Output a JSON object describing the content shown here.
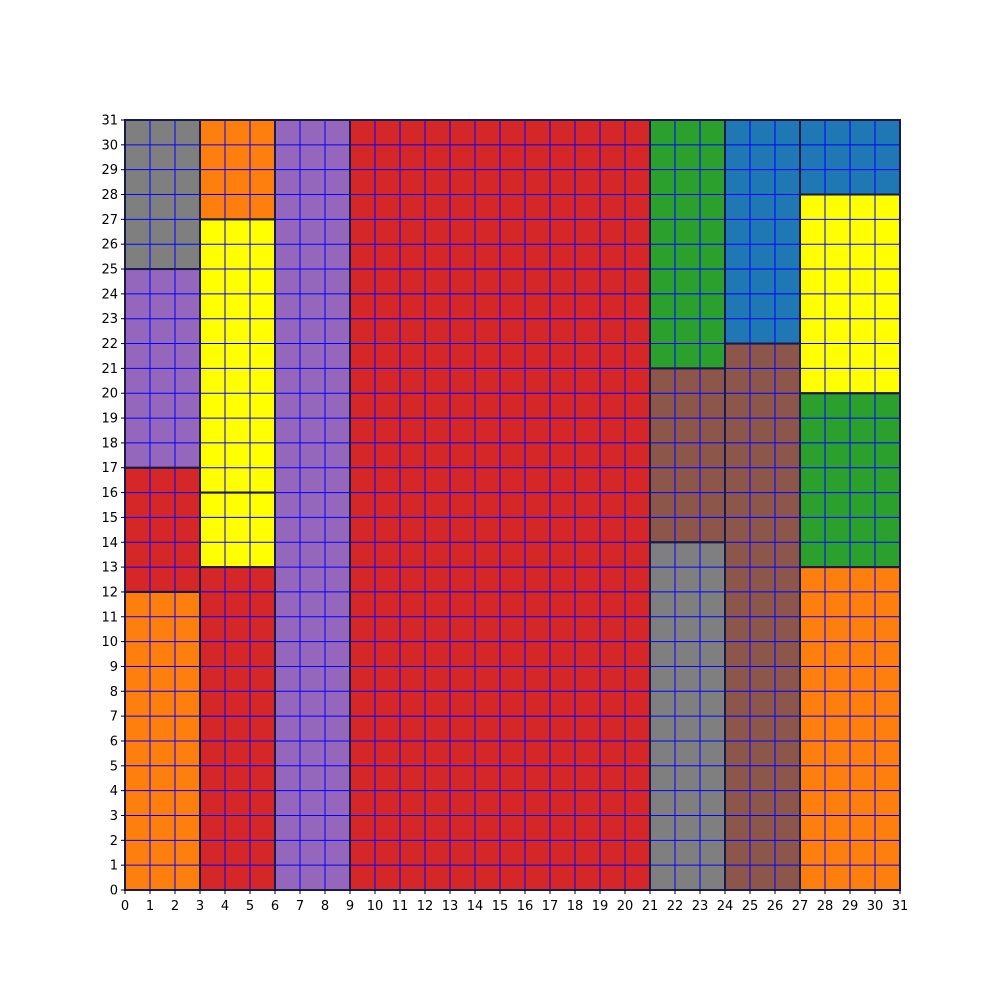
{
  "grid": {
    "size": 31,
    "x_ticks": [
      "0",
      "1",
      "2",
      "3",
      "4",
      "5",
      "6",
      "7",
      "8",
      "9",
      "10",
      "11",
      "12",
      "13",
      "14",
      "15",
      "16",
      "17",
      "18",
      "19",
      "20",
      "21",
      "22",
      "23",
      "24",
      "25",
      "26",
      "27",
      "28",
      "29",
      "30",
      "31"
    ],
    "y_ticks": [
      "0",
      "1",
      "2",
      "3",
      "4",
      "5",
      "6",
      "7",
      "8",
      "9",
      "10",
      "11",
      "12",
      "13",
      "14",
      "15",
      "16",
      "17",
      "18",
      "19",
      "20",
      "21",
      "22",
      "23",
      "24",
      "25",
      "26",
      "27",
      "28",
      "29",
      "30",
      "31"
    ],
    "grid_line_color": "#0000ff",
    "border_color": "#1a1a4d"
  },
  "regions": [
    {
      "name": "gray-top-left",
      "color": "#7f7f7f",
      "x0": 0,
      "x1": 3,
      "y0": 25,
      "y1": 31
    },
    {
      "name": "purple-left",
      "color": "#9467bd",
      "x0": 0,
      "x1": 3,
      "y0": 17,
      "y1": 25
    },
    {
      "name": "red-left",
      "color": "#d62728",
      "x0": 0,
      "x1": 3,
      "y0": 12,
      "y1": 17
    },
    {
      "name": "orange-bottom-left",
      "color": "#ff7f0e",
      "x0": 0,
      "x1": 3,
      "y0": 0,
      "y1": 12
    },
    {
      "name": "orange-top-col2",
      "color": "#ff7f0e",
      "x0": 3,
      "x1": 6,
      "y0": 27,
      "y1": 31
    },
    {
      "name": "yellow-upper-col2",
      "color": "#ffff00",
      "x0": 3,
      "x1": 6,
      "y0": 16,
      "y1": 27
    },
    {
      "name": "yellow-lower-col2",
      "color": "#ffff00",
      "x0": 3,
      "x1": 6,
      "y0": 13,
      "y1": 16
    },
    {
      "name": "red-bottom-col2",
      "color": "#d62728",
      "x0": 3,
      "x1": 6,
      "y0": 0,
      "y1": 13
    },
    {
      "name": "purple-col3",
      "color": "#9467bd",
      "x0": 6,
      "x1": 9,
      "y0": 0,
      "y1": 31
    },
    {
      "name": "red-center",
      "color": "#d62728",
      "x0": 9,
      "x1": 21,
      "y0": 0,
      "y1": 31
    },
    {
      "name": "green-top-col5",
      "color": "#2ca02c",
      "x0": 21,
      "x1": 24,
      "y0": 21,
      "y1": 31
    },
    {
      "name": "brown-mid-col5",
      "color": "#8c564b",
      "x0": 21,
      "x1": 24,
      "y0": 14,
      "y1": 21
    },
    {
      "name": "gray-bottom-col5",
      "color": "#7f7f7f",
      "x0": 21,
      "x1": 24,
      "y0": 0,
      "y1": 14
    },
    {
      "name": "blue-top-col6",
      "color": "#1f77b4",
      "x0": 24,
      "x1": 27,
      "y0": 22,
      "y1": 31
    },
    {
      "name": "brown-bottom-col6",
      "color": "#8c564b",
      "x0": 24,
      "x1": 27,
      "y0": 0,
      "y1": 22
    },
    {
      "name": "blue-top-right",
      "color": "#1f77b4",
      "x0": 27,
      "x1": 31,
      "y0": 28,
      "y1": 31
    },
    {
      "name": "yellow-right",
      "color": "#ffff00",
      "x0": 27,
      "x1": 31,
      "y0": 20,
      "y1": 28
    },
    {
      "name": "green-right",
      "color": "#2ca02c",
      "x0": 27,
      "x1": 31,
      "y0": 13,
      "y1": 20
    },
    {
      "name": "orange-bottom-right",
      "color": "#ff7f0e",
      "x0": 27,
      "x1": 31,
      "y0": 0,
      "y1": 13
    }
  ]
}
